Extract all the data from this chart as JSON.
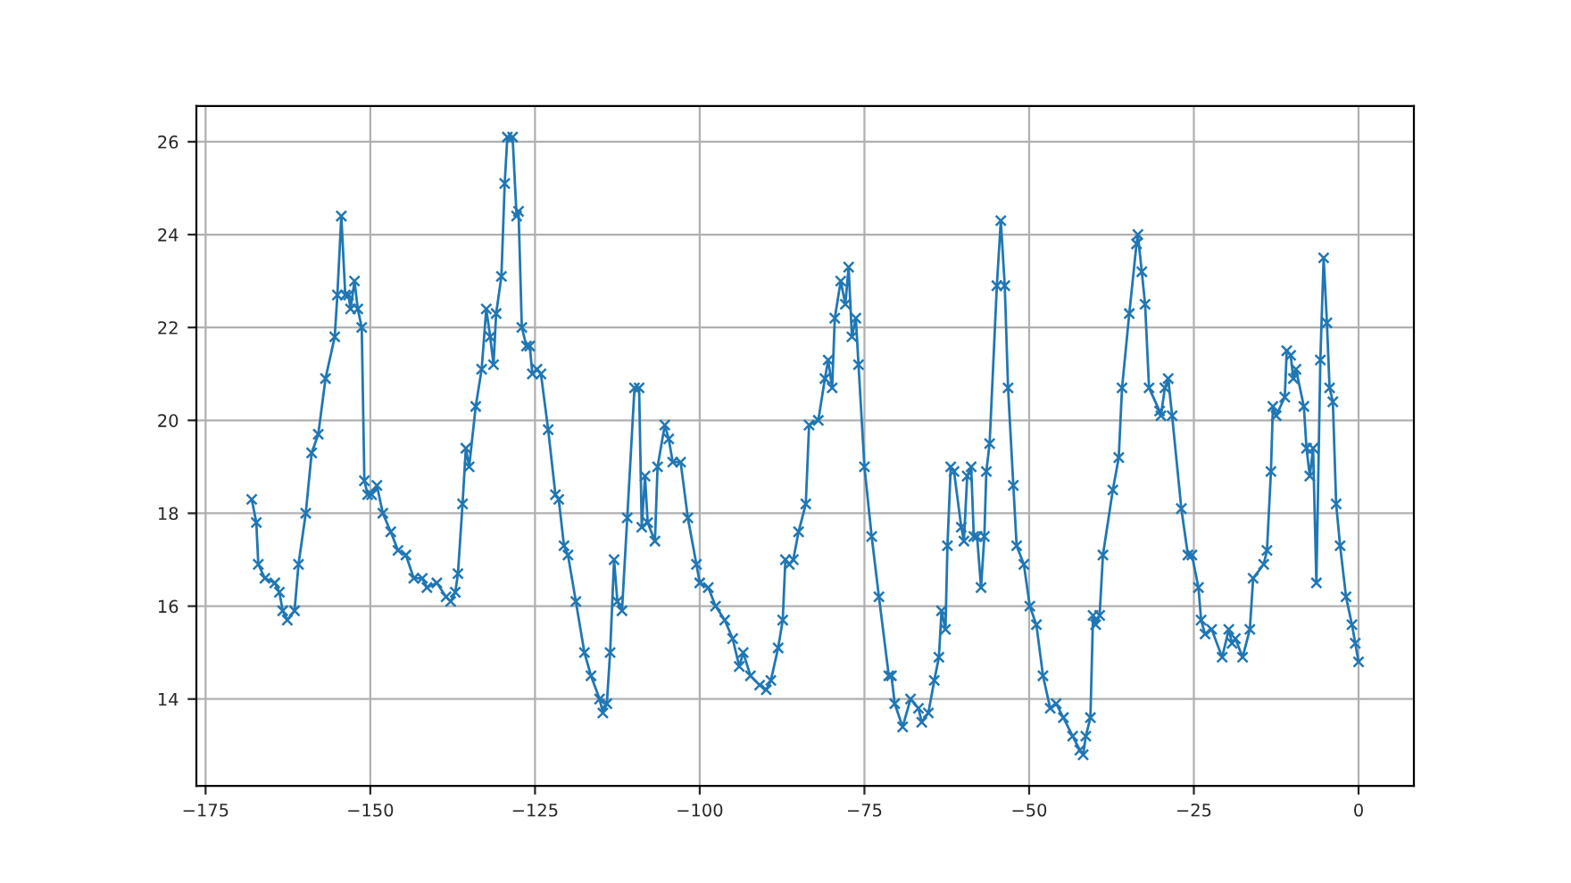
{
  "chart_data": {
    "type": "line",
    "marker": "cross",
    "line_style": "solid",
    "grid": true,
    "xlim": [
      -176.4,
      8.4
    ],
    "ylim": [
      12.13,
      26.77
    ],
    "xticks": [
      {
        "value": -175,
        "label": "−175"
      },
      {
        "value": -150,
        "label": "−150"
      },
      {
        "value": -125,
        "label": "−125"
      },
      {
        "value": -100,
        "label": "−100"
      },
      {
        "value": -75,
        "label": "−75"
      },
      {
        "value": -50,
        "label": "−50"
      },
      {
        "value": -25,
        "label": "−25"
      },
      0
    ],
    "yticks": [
      14,
      16,
      18,
      20,
      22,
      24,
      26
    ],
    "series": [
      {
        "color": "#1f77b4",
        "x": [
          -168,
          -167.3,
          -167,
          -166,
          -164.5,
          -163.8,
          -163.3,
          -162.6,
          -161.5,
          -160.9,
          -159.8,
          -158.9,
          -157.9,
          -156.8,
          -155.4,
          -155,
          -154.4,
          -153.8,
          -153.3,
          -153,
          -152.4,
          -151.9,
          -151.3,
          -150.9,
          -150.4,
          -149.8,
          -149,
          -148.1,
          -146.9,
          -145.8,
          -144.6,
          -143.4,
          -142.1,
          -141.4,
          -139.9,
          -138.5,
          -137.8,
          -137.1,
          -136.7,
          -136,
          -135.5,
          -135,
          -134,
          -133.1,
          -132.4,
          -131.8,
          -131.3,
          -130.9,
          -130.1,
          -129.6,
          -129.2,
          -128.4,
          -127.8,
          -127.5,
          -127,
          -126.3,
          -125.8,
          -125.4,
          -124.7,
          -124.1,
          -123,
          -121.9,
          -121.4,
          -120.6,
          -120,
          -118.8,
          -117.5,
          -116.5,
          -115.2,
          -114.7,
          -114.1,
          -113.6,
          -113,
          -112.5,
          -111.8,
          -111,
          -109.9,
          -109.2,
          -108.8,
          -108.3,
          -107.9,
          -106.8,
          -106.4,
          -105.3,
          -104.7,
          -104.1,
          -102.9,
          -101.8,
          -100.5,
          -100,
          -98.7,
          -97.6,
          -96.2,
          -95,
          -94,
          -93.4,
          -92.3,
          -90.9,
          -89.9,
          -89.2,
          -88.1,
          -87.4,
          -87,
          -86.4,
          -85.8,
          -85,
          -83.9,
          -83.4,
          -82,
          -81,
          -80.5,
          -79.9,
          -79.5,
          -78.6,
          -77.9,
          -77.4,
          -76.9,
          -76.3,
          -75.9,
          -75,
          -73.9,
          -72.8,
          -71.3,
          -70.9,
          -70.4,
          -69.2,
          -68,
          -66.8,
          -66.3,
          -65.3,
          -64.4,
          -63.7,
          -63.3,
          -62.7,
          -62.4,
          -61.9,
          -61.4,
          -60.3,
          -59.9,
          -59.4,
          -58.8,
          -58.4,
          -57.9,
          -57.3,
          -56.8,
          -56.5,
          -56,
          -54.9,
          -54.3,
          -53.7,
          -53.2,
          -52.4,
          -51.9,
          -50.8,
          -49.9,
          -48.9,
          -47.9,
          -46.8,
          -45.9,
          -44.8,
          -43.4,
          -42.3,
          -41.8,
          -41.4,
          -40.7,
          -40.3,
          -39.9,
          -39.3,
          -38.8,
          -37.3,
          -36.4,
          -35.9,
          -34.8,
          -33.7,
          -33.5,
          -32.9,
          -32.4,
          -31.8,
          -30.2,
          -30,
          -29.4,
          -28.9,
          -28.3,
          -26.9,
          -25.9,
          -25.3,
          -24.3,
          -23.9,
          -23.3,
          -22.3,
          -20.7,
          -19.7,
          -19.2,
          -18.7,
          -17.6,
          -16.5,
          -16,
          -14.4,
          -13.9,
          -13.3,
          -13,
          -12.5,
          -11.2,
          -10.9,
          -10.3,
          -9.9,
          -9.5,
          -8.3,
          -7.9,
          -7.4,
          -6.9,
          -6.4,
          -5.8,
          -5.3,
          -4.8,
          -4.4,
          -3.9,
          -3.4,
          -2.8,
          -1.9,
          -1,
          -0.5,
          0
        ],
        "values": [
          18.3,
          17.8,
          16.9,
          16.6,
          16.5,
          16.3,
          15.9,
          15.7,
          15.9,
          16.9,
          18.0,
          19.3,
          19.7,
          20.9,
          21.8,
          22.7,
          24.4,
          22.7,
          22.7,
          22.4,
          23.0,
          22.4,
          22.0,
          18.7,
          18.4,
          18.4,
          18.6,
          18.0,
          17.6,
          17.2,
          17.1,
          16.6,
          16.6,
          16.4,
          16.5,
          16.2,
          16.1,
          16.3,
          16.7,
          18.2,
          19.4,
          19.0,
          20.3,
          21.1,
          22.4,
          21.8,
          21.2,
          22.3,
          23.1,
          25.1,
          26.1,
          26.1,
          24.4,
          24.5,
          22.0,
          21.6,
          21.6,
          21.0,
          21.1,
          21.0,
          19.8,
          18.4,
          18.3,
          17.3,
          17.1,
          16.1,
          15.0,
          14.5,
          14.0,
          13.7,
          13.9,
          15.0,
          17.0,
          16.1,
          15.9,
          17.9,
          20.7,
          20.7,
          17.7,
          18.8,
          17.8,
          17.4,
          19.0,
          19.9,
          19.6,
          19.1,
          19.1,
          17.9,
          16.9,
          16.5,
          16.4,
          16.0,
          15.7,
          15.3,
          14.7,
          15.0,
          14.5,
          14.3,
          14.2,
          14.4,
          15.1,
          15.7,
          17.0,
          16.9,
          17.0,
          17.6,
          18.2,
          19.9,
          20.0,
          20.9,
          21.3,
          20.7,
          22.2,
          23.0,
          22.5,
          23.3,
          21.8,
          22.2,
          21.2,
          19.0,
          17.5,
          16.2,
          14.5,
          14.5,
          13.9,
          13.4,
          14.0,
          13.8,
          13.5,
          13.7,
          14.4,
          14.9,
          15.9,
          15.5,
          17.3,
          19.0,
          18.9,
          17.7,
          17.4,
          18.8,
          19.0,
          17.5,
          17.5,
          16.4,
          17.5,
          18.9,
          19.5,
          22.9,
          24.3,
          22.9,
          20.7,
          18.6,
          17.3,
          16.9,
          16.0,
          15.6,
          14.5,
          13.8,
          13.9,
          13.6,
          13.2,
          12.9,
          12.8,
          13.2,
          13.6,
          15.8,
          15.6,
          15.8,
          17.1,
          18.5,
          19.2,
          20.7,
          22.3,
          23.8,
          24.0,
          23.2,
          22.5,
          20.7,
          20.2,
          20.1,
          20.7,
          20.9,
          20.1,
          18.1,
          17.1,
          17.1,
          16.4,
          15.7,
          15.4,
          15.5,
          14.9,
          15.5,
          15.2,
          15.3,
          14.9,
          15.5,
          16.6,
          16.9,
          17.2,
          18.9,
          20.3,
          20.1,
          20.5,
          21.5,
          21.4,
          20.9,
          21.1,
          20.3,
          19.4,
          18.8,
          19.4,
          16.5,
          21.3,
          23.5,
          22.1,
          20.7,
          20.4,
          18.2,
          17.3,
          16.2,
          15.6,
          15.2,
          14.8
        ]
      }
    ]
  }
}
